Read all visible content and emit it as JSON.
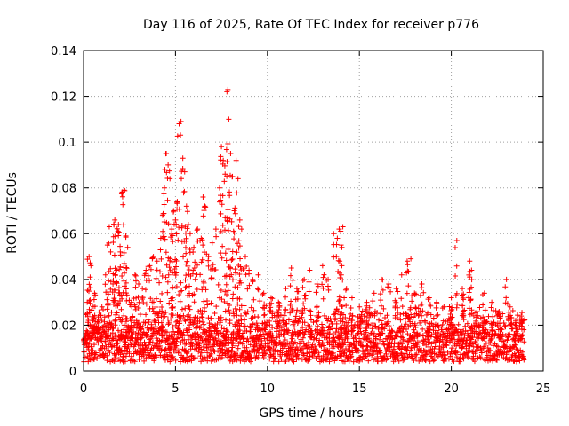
{
  "chart_data": {
    "type": "scatter",
    "title": "Day 116 of 2025, Rate Of TEC Index for receiver p776",
    "xlabel": "GPS time / hours",
    "ylabel": "ROTI / TECUs",
    "xlim": [
      0,
      25
    ],
    "ylim": [
      0,
      0.14
    ],
    "xticks": [
      0,
      5,
      10,
      15,
      20,
      25
    ],
    "xtick_labels": [
      "0",
      "5",
      "10",
      "15",
      "20",
      "25"
    ],
    "yticks": [
      0,
      0.02,
      0.04,
      0.06,
      0.08,
      0.1,
      0.12,
      0.14
    ],
    "ytick_labels": [
      "0",
      "0.02",
      "0.04",
      "0.06",
      "0.08",
      "0.1",
      "0.12",
      "0.14"
    ],
    "grid": true,
    "marker": "+",
    "series": [
      {
        "name": "ROTI",
        "color": "#ff0000",
        "points": [
          [
            0.1,
            0.012
          ],
          [
            0.2,
            0.03
          ],
          [
            0.3,
            0.05
          ],
          [
            0.4,
            0.046
          ],
          [
            0.5,
            0.022
          ],
          [
            0.6,
            0.034
          ],
          [
            0.8,
            0.018
          ],
          [
            1.0,
            0.028
          ],
          [
            1.2,
            0.042
          ],
          [
            1.3,
            0.055
          ],
          [
            1.4,
            0.063
          ],
          [
            1.6,
            0.038
          ],
          [
            1.7,
            0.066
          ],
          [
            1.8,
            0.044
          ],
          [
            1.9,
            0.064
          ],
          [
            2.0,
            0.052
          ],
          [
            2.1,
            0.078
          ],
          [
            2.2,
            0.079
          ],
          [
            2.3,
            0.059
          ],
          [
            2.4,
            0.054
          ],
          [
            2.6,
            0.03
          ],
          [
            2.8,
            0.042
          ],
          [
            3.0,
            0.038
          ],
          [
            3.2,
            0.036
          ],
          [
            3.4,
            0.044
          ],
          [
            3.6,
            0.046
          ],
          [
            3.8,
            0.05
          ],
          [
            4.0,
            0.048
          ],
          [
            4.2,
            0.058
          ],
          [
            4.3,
            0.068
          ],
          [
            4.4,
            0.08
          ],
          [
            4.5,
            0.095
          ],
          [
            4.6,
            0.09
          ],
          [
            4.7,
            0.084
          ],
          [
            4.8,
            0.062
          ],
          [
            4.9,
            0.07
          ],
          [
            5.0,
            0.066
          ],
          [
            5.1,
            0.074
          ],
          [
            5.2,
            0.108
          ],
          [
            5.3,
            0.109
          ],
          [
            5.4,
            0.093
          ],
          [
            5.5,
            0.087
          ],
          [
            5.6,
            0.072
          ],
          [
            5.7,
            0.064
          ],
          [
            5.8,
            0.06
          ],
          [
            6.0,
            0.054
          ],
          [
            6.2,
            0.062
          ],
          [
            6.4,
            0.058
          ],
          [
            6.5,
            0.076
          ],
          [
            6.6,
            0.072
          ],
          [
            6.8,
            0.05
          ],
          [
            7.0,
            0.056
          ],
          [
            7.2,
            0.062
          ],
          [
            7.4,
            0.08
          ],
          [
            7.5,
            0.098
          ],
          [
            7.6,
            0.092
          ],
          [
            7.7,
            0.086
          ],
          [
            7.8,
            0.122
          ],
          [
            7.85,
            0.123
          ],
          [
            7.9,
            0.11
          ],
          [
            8.0,
            0.095
          ],
          [
            8.1,
            0.085
          ],
          [
            8.2,
            0.07
          ],
          [
            8.3,
            0.092
          ],
          [
            8.4,
            0.084
          ],
          [
            8.5,
            0.066
          ],
          [
            8.6,
            0.062
          ],
          [
            8.8,
            0.05
          ],
          [
            9.0,
            0.044
          ],
          [
            9.2,
            0.04
          ],
          [
            9.5,
            0.042
          ],
          [
            9.8,
            0.034
          ],
          [
            10.2,
            0.032
          ],
          [
            10.6,
            0.03
          ],
          [
            11.0,
            0.036
          ],
          [
            11.3,
            0.045
          ],
          [
            11.6,
            0.036
          ],
          [
            12.0,
            0.04
          ],
          [
            12.3,
            0.044
          ],
          [
            12.7,
            0.038
          ],
          [
            13.0,
            0.046
          ],
          [
            13.3,
            0.04
          ],
          [
            13.6,
            0.06
          ],
          [
            13.8,
            0.058
          ],
          [
            13.9,
            0.062
          ],
          [
            14.0,
            0.055
          ],
          [
            14.1,
            0.063
          ],
          [
            14.3,
            0.036
          ],
          [
            14.6,
            0.032
          ],
          [
            15.0,
            0.028
          ],
          [
            15.4,
            0.03
          ],
          [
            15.8,
            0.034
          ],
          [
            16.2,
            0.04
          ],
          [
            16.6,
            0.038
          ],
          [
            17.0,
            0.036
          ],
          [
            17.3,
            0.042
          ],
          [
            17.6,
            0.048
          ],
          [
            17.8,
            0.049
          ],
          [
            18.0,
            0.034
          ],
          [
            18.4,
            0.038
          ],
          [
            18.8,
            0.032
          ],
          [
            19.2,
            0.03
          ],
          [
            19.6,
            0.028
          ],
          [
            20.0,
            0.032
          ],
          [
            20.3,
            0.057
          ],
          [
            20.6,
            0.036
          ],
          [
            21.0,
            0.048
          ],
          [
            21.1,
            0.044
          ],
          [
            21.4,
            0.026
          ],
          [
            21.8,
            0.034
          ],
          [
            22.2,
            0.03
          ],
          [
            22.6,
            0.026
          ],
          [
            23.0,
            0.04
          ],
          [
            23.2,
            0.028
          ],
          [
            23.5,
            0.022
          ],
          [
            23.8,
            0.024
          ]
        ]
      }
    ],
    "dense_band": {
      "description": "dense floor of scatter points across full day",
      "x_range": [
        0,
        24
      ],
      "baseline_min": 0.004,
      "baseline_max": 0.022
    }
  }
}
